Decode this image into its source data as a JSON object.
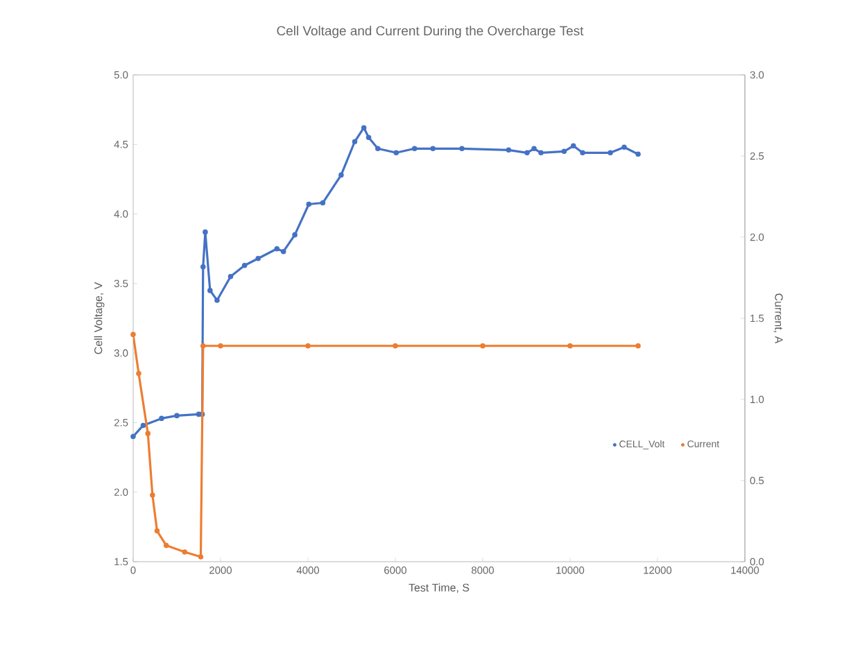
{
  "chart_data": {
    "type": "line",
    "title": "Cell Voltage and Current During the Overcharge Test",
    "xlabel": "Test Time, S",
    "ylabel": "Cell Voltage, V",
    "y2label": "Current, A",
    "xlim": [
      0,
      14000
    ],
    "xticks": [
      0,
      2000,
      4000,
      6000,
      8000,
      10000,
      12000,
      14000
    ],
    "ylim": [
      1.5,
      5.0
    ],
    "yticks": [
      {
        "value": 1.5,
        "label": "1.5"
      },
      {
        "value": 2.0,
        "label": "2.0"
      },
      {
        "value": 2.5,
        "label": "2.5"
      },
      {
        "value": 3.0,
        "label": "3.0"
      },
      {
        "value": 3.5,
        "label": "3.5"
      },
      {
        "value": 4.0,
        "label": "4.0"
      },
      {
        "value": 4.5,
        "label": "4.5"
      },
      {
        "value": 5.0,
        "label": "5.0"
      }
    ],
    "y2lim": [
      0,
      3.0
    ],
    "y2ticks": [
      {
        "value": 0,
        "label": "0.0"
      },
      {
        "value": 0.5,
        "label": "0.5"
      },
      {
        "value": 1.0,
        "label": "1.0"
      },
      {
        "value": 1.5,
        "label": "1.5"
      },
      {
        "value": 2.0,
        "label": "2.0"
      },
      {
        "value": 2.5,
        "label": "2.5"
      },
      {
        "value": 3.0,
        "label": "3.0"
      }
    ],
    "legend": "right",
    "marker": "circle",
    "grid": false,
    "series": [
      {
        "name": "CELL_Volt",
        "color": "#4472c4",
        "x": [
          0,
          230,
          650,
          1000,
          1500,
          1580,
          1600,
          1650,
          1760,
          1920,
          2230,
          2550,
          2860,
          3290,
          3440,
          3700,
          4020,
          4340,
          4760,
          5070,
          5280,
          5390,
          5600,
          6020,
          6440,
          6860,
          7524,
          8593,
          9016,
          9175,
          9333,
          9863,
          10075,
          10286,
          10921,
          11238,
          11556
        ],
        "values": [
          2.4,
          2.48,
          2.53,
          2.55,
          2.56,
          2.56,
          3.62,
          3.87,
          3.45,
          3.38,
          3.55,
          3.63,
          3.68,
          3.75,
          3.73,
          3.85,
          4.07,
          4.08,
          4.28,
          4.52,
          4.62,
          4.55,
          4.47,
          4.44,
          4.47,
          4.47,
          4.47,
          4.46,
          4.44,
          4.47,
          4.44,
          4.45,
          4.49,
          4.44,
          4.44,
          4.48,
          4.43
        ]
      },
      {
        "name": "Current",
        "color": "#ed7d31",
        "axis": "y2",
        "x": [
          0,
          126,
          337,
          442,
          547,
          758,
          1179,
          1547,
          1600,
          2000,
          4000,
          6000,
          8000,
          10000,
          11556
        ],
        "values": [
          1.4,
          1.16,
          0.79,
          0.41,
          0.19,
          0.1,
          0.06,
          0.03,
          1.33,
          1.33,
          1.33,
          1.33,
          1.33,
          1.33,
          1.33
        ]
      }
    ]
  }
}
